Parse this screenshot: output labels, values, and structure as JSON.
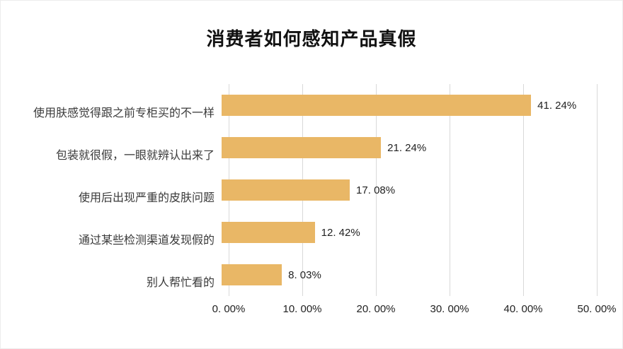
{
  "chart_data": {
    "type": "bar",
    "orientation": "horizontal",
    "title": "消费者如何感知产品真假",
    "categories": [
      "使用肤感觉得跟之前专柜买的不一样",
      "包装就很假，一眼就辨认出来了",
      "使用后出现严重的皮肤问题",
      "通过某些检测渠道发现假的",
      "别人帮忙看的"
    ],
    "values": [
      41.24,
      21.24,
      17.08,
      12.42,
      8.03
    ],
    "value_labels": [
      "41. 24%",
      "21. 24%",
      "17. 08%",
      "12. 42%",
      "8. 03%"
    ],
    "x_ticks": [
      "0. 00%",
      "10. 00%",
      "20. 00%",
      "30. 00%",
      "40. 00%",
      "50. 00%"
    ],
    "xlim": [
      0,
      50
    ],
    "grid": true,
    "legend": false,
    "bar_color": "#e9b766",
    "gridline_color": "#d9d9d9",
    "title_color": "#111111",
    "label_color": "#3a3a3a"
  }
}
